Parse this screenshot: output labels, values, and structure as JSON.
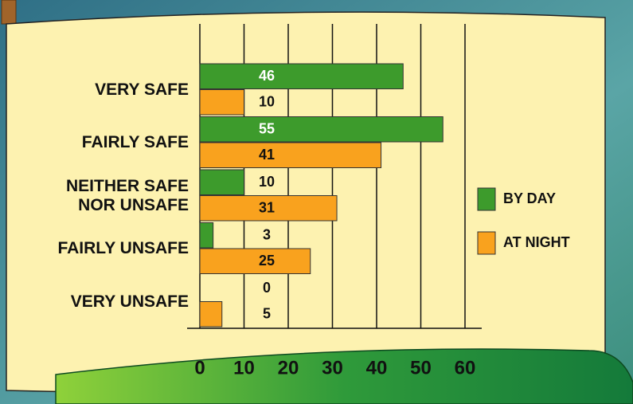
{
  "chart_data": {
    "type": "bar",
    "orientation": "horizontal",
    "categories": [
      "VERY SAFE",
      "FAIRLY SAFE",
      "NEITHER SAFE NOR UNSAFE",
      "FAIRLY UNSAFE",
      "VERY UNSAFE"
    ],
    "series": [
      {
        "name": "BY DAY",
        "color": "#3d9b2c",
        "values": [
          46,
          55,
          10,
          3,
          0
        ]
      },
      {
        "name": "AT NIGHT",
        "color": "#f9a21e",
        "values": [
          10,
          41,
          31,
          25,
          5
        ]
      }
    ],
    "xlim": [
      0,
      60
    ],
    "xticks": [
      0,
      10,
      20,
      30,
      40,
      50,
      60
    ],
    "grid": true
  }
}
